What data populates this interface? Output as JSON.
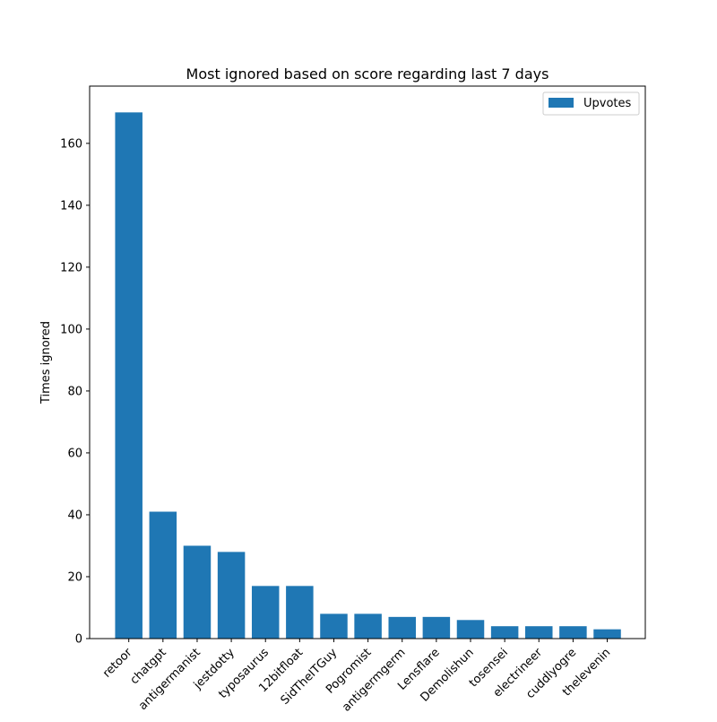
{
  "chart_data": {
    "type": "bar",
    "title": "Most ignored based on score regarding last 7 days",
    "xlabel": "",
    "ylabel": "Times ignored",
    "categories": [
      "retoor",
      "chatgpt",
      "antigermanist",
      "jestdotty",
      "typosaurus",
      "12bitfloat",
      "SidTheITGuy",
      "Pogromist",
      "antigermgerm",
      "Lensflare",
      "Demolishun",
      "tosensei",
      "electrineer",
      "cuddlyogre",
      "thelevenin"
    ],
    "series": [
      {
        "name": "Upvotes",
        "values": [
          170,
          41,
          30,
          28,
          17,
          17,
          8,
          8,
          7,
          7,
          6,
          4,
          4,
          4,
          3
        ]
      }
    ],
    "yticks": [
      0,
      20,
      40,
      60,
      80,
      100,
      120,
      140,
      160
    ],
    "ylim": [
      0,
      178.5
    ],
    "legend": "top-right",
    "grid": false,
    "colors": {
      "bar": "#1f77b4"
    }
  }
}
